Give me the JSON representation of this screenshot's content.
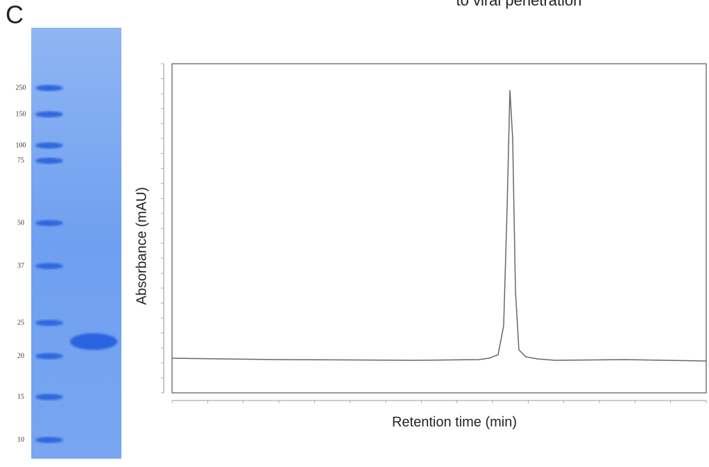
{
  "title": "to viral penetration",
  "panel_label": "C",
  "gel": {
    "ladder": [
      250,
      150,
      100,
      75,
      50,
      37,
      25,
      20,
      15,
      10
    ]
  },
  "chromatogram": {
    "y_label": "Absorbance (mAU)",
    "x_label": "Retention time (min)"
  }
}
